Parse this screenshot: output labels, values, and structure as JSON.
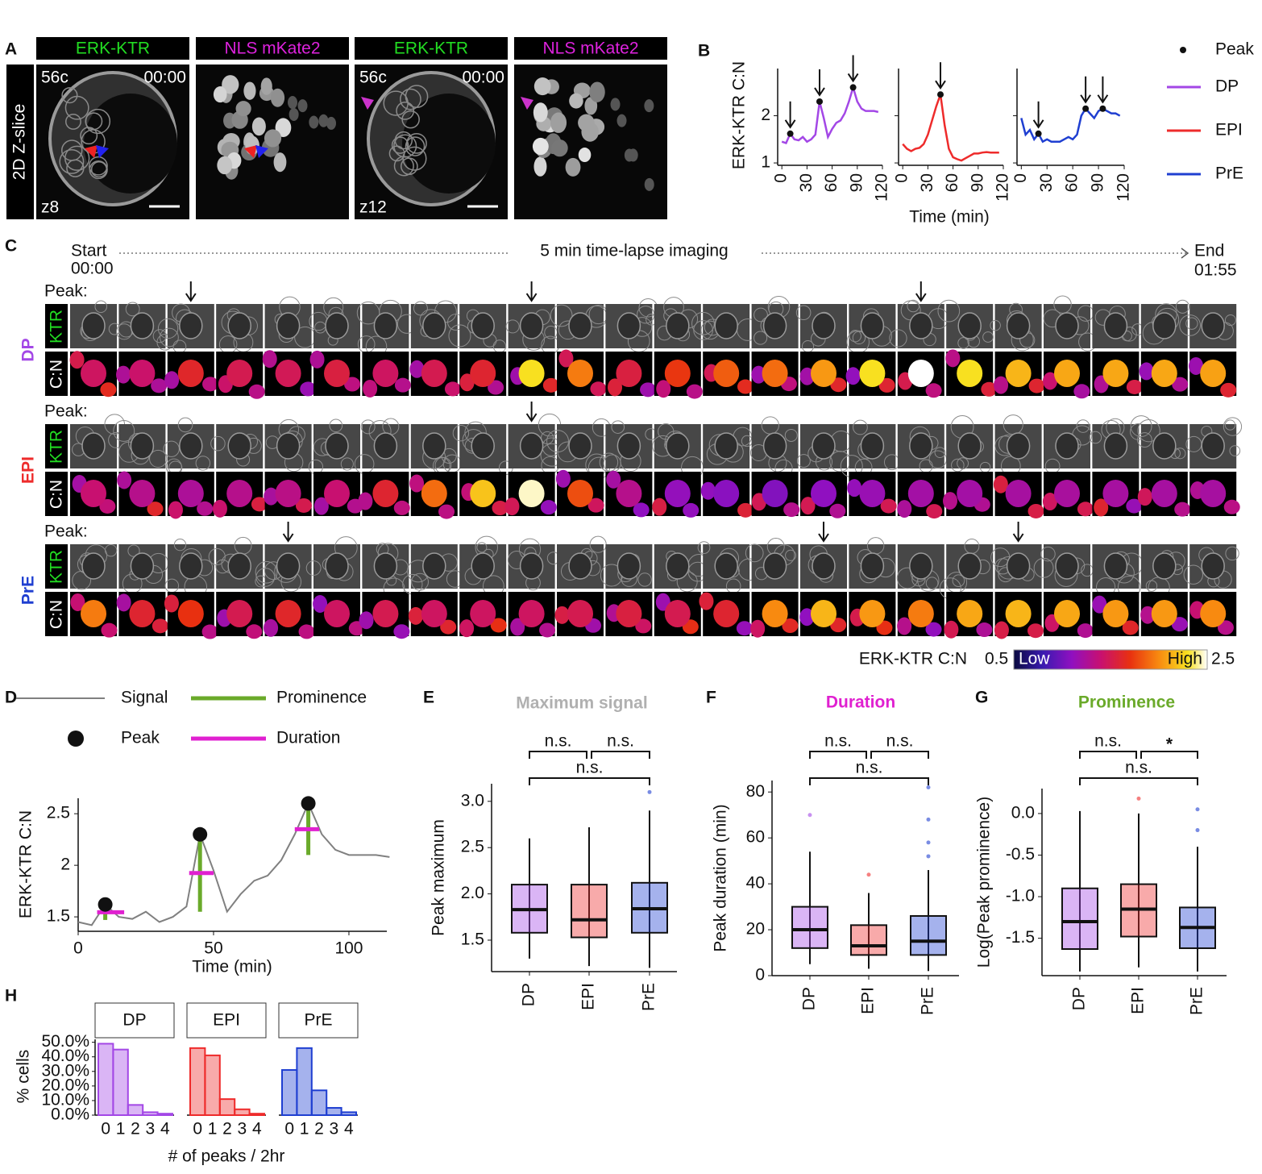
{
  "panel_labels": [
    "A",
    "B",
    "C",
    "D",
    "E",
    "F",
    "G",
    "H"
  ],
  "panel_a": {
    "channels": [
      "ERK-KTR",
      "NLS mKate2",
      "ERK-KTR",
      "NLS mKate2"
    ],
    "side_label": "2D Z-slice",
    "stage": "56c",
    "time": "00:00",
    "z": [
      "z8",
      "z12"
    ]
  },
  "panel_c": {
    "start": "Start",
    "start_time": "00:00",
    "caption": "5 min time-lapse imaging",
    "end": "End",
    "end_time": "01:55",
    "peak_label": "Peak:",
    "channel_labels": [
      "KTR",
      "C:N"
    ],
    "colorbar": {
      "label": "ERK-KTR C:N",
      "min": 0.5,
      "min_label": "Low",
      "max_label": "High",
      "max": 2.5
    }
  },
  "chart_data": [
    {
      "type": "line",
      "y_label": "ERK-KTR C:N",
      "x_label": "Time (min)",
      "peak_label": "Peak",
      "x": [
        0,
        5,
        10,
        15,
        20,
        25,
        30,
        35,
        40,
        45,
        50,
        55,
        60,
        65,
        70,
        75,
        80,
        85,
        90,
        95,
        100,
        105,
        110,
        115
      ],
      "xlim": [
        -5,
        120
      ],
      "xticks": [
        0,
        30,
        60,
        90,
        120
      ],
      "ylim": [
        0.95,
        3.0
      ],
      "yticks": [
        1,
        2
      ],
      "series": [
        {
          "name": "DP",
          "color": "#a347e6",
          "values": [
            1.45,
            1.42,
            1.62,
            1.5,
            1.48,
            1.55,
            1.45,
            1.5,
            1.6,
            2.3,
            1.95,
            1.55,
            1.72,
            1.85,
            1.9,
            2.05,
            2.3,
            2.6,
            2.3,
            2.15,
            2.1,
            2.1,
            2.1,
            2.08
          ],
          "peaks": [
            2,
            9,
            17
          ]
        },
        {
          "name": "EPI",
          "color": "#ee2b2b",
          "values": [
            1.4,
            1.3,
            1.25,
            1.3,
            1.32,
            1.4,
            1.6,
            1.9,
            2.2,
            2.45,
            1.8,
            1.3,
            1.12,
            1.08,
            1.05,
            1.1,
            1.15,
            1.2,
            1.2,
            1.22,
            1.23,
            1.22,
            1.22,
            1.22
          ],
          "peaks": [
            9
          ]
        },
        {
          "name": "PrE",
          "color": "#1f3fd1",
          "values": [
            1.95,
            1.6,
            1.7,
            1.5,
            1.62,
            1.45,
            1.5,
            1.45,
            1.45,
            1.45,
            1.5,
            1.55,
            1.5,
            1.6,
            2.0,
            2.15,
            2.05,
            1.95,
            2.1,
            2.15,
            2.1,
            2.05,
            2.05,
            2.0
          ],
          "peaks": [
            4,
            15,
            19
          ]
        }
      ]
    },
    {
      "type": "line",
      "y_label": "ERK-KTR C:N",
      "x_label": "Time (min)",
      "x": [
        0,
        5,
        10,
        15,
        20,
        25,
        30,
        35,
        40,
        45,
        50,
        55,
        60,
        65,
        70,
        75,
        80,
        85,
        90,
        95,
        100,
        105,
        110,
        115
      ],
      "xlim": [
        0,
        114
      ],
      "xticks": [
        0,
        50,
        100
      ],
      "ylim": [
        1.36,
        2.65
      ],
      "yticks": [
        1.5,
        2,
        2.5
      ],
      "series": [
        {
          "name": "Signal",
          "color": "#808080",
          "values": [
            1.45,
            1.42,
            1.62,
            1.5,
            1.48,
            1.55,
            1.45,
            1.5,
            1.6,
            2.3,
            1.95,
            1.55,
            1.72,
            1.85,
            1.9,
            2.05,
            2.3,
            2.6,
            2.3,
            2.15,
            2.1,
            2.1,
            2.1,
            2.08
          ]
        }
      ],
      "peaks": {
        "name": "Peak",
        "indices": [
          2,
          9,
          17
        ]
      },
      "prominence": {
        "name": "Prominence",
        "color": "#6aaa2a",
        "values": [
          0.15,
          0.75,
          0.5
        ]
      },
      "duration": {
        "name": "Duration",
        "color": "#e020d0",
        "start": [
          7,
          41,
          80
        ],
        "end": [
          17,
          50,
          89
        ]
      }
    },
    {
      "type": "box",
      "title": "Maximum signal",
      "title_color": "#b0b0b0",
      "y_label": "Peak maximum",
      "categories": [
        "DP",
        "EPI",
        "PrE"
      ],
      "colors": [
        "#a347e6",
        "#ee2b2b",
        "#1f3fd1"
      ],
      "ylim": [
        1.16,
        3.19
      ],
      "yticks": [
        1.5,
        {
          "value": 2.0,
          "label": "2.0"
        },
        2.5,
        {
          "value": 3.0,
          "label": "3.0"
        }
      ],
      "boxes": [
        {
          "low": 1.3,
          "q1": 1.58,
          "median": 1.83,
          "q3": 2.1,
          "high": 2.6,
          "outliers": []
        },
        {
          "low": 1.22,
          "q1": 1.53,
          "median": 1.72,
          "q3": 2.1,
          "high": 2.72,
          "outliers": []
        },
        {
          "low": 1.2,
          "q1": 1.58,
          "median": 1.84,
          "q3": 2.12,
          "high": 2.9,
          "outliers": [
            3.1
          ]
        }
      ],
      "comparisons": [
        {
          "pair": [
            0,
            1
          ],
          "label": "n.s."
        },
        {
          "pair": [
            1,
            2
          ],
          "label": "n.s."
        },
        {
          "pair": [
            0,
            2
          ],
          "label": "n.s."
        }
      ]
    },
    {
      "type": "box",
      "title": "Duration",
      "title_color": "#e020d0",
      "y_label": "Peak duration (min)",
      "categories": [
        "DP",
        "EPI",
        "PrE"
      ],
      "colors": [
        "#a347e6",
        "#ee2b2b",
        "#1f3fd1"
      ],
      "ylim": [
        0,
        85
      ],
      "yticks": [
        0,
        20,
        40,
        60,
        80
      ],
      "boxes": [
        {
          "low": 5,
          "q1": 12,
          "median": 20,
          "q3": 30,
          "high": 54,
          "outliers": [
            70
          ]
        },
        {
          "low": 3,
          "q1": 9,
          "median": 13,
          "q3": 22,
          "high": 36,
          "outliers": [
            44
          ]
        },
        {
          "low": 2,
          "q1": 9,
          "median": 15,
          "q3": 26,
          "high": 46,
          "outliers": [
            52,
            58,
            68,
            82
          ]
        }
      ],
      "comparisons": [
        {
          "pair": [
            0,
            1
          ],
          "label": "n.s."
        },
        {
          "pair": [
            1,
            2
          ],
          "label": "n.s."
        },
        {
          "pair": [
            0,
            2
          ],
          "label": "n.s."
        }
      ]
    },
    {
      "type": "box",
      "title": "Prominence",
      "title_color": "#6aaa2a",
      "y_label": "Log(Peak prominence)",
      "categories": [
        "DP",
        "EPI",
        "PrE"
      ],
      "colors": [
        "#a347e6",
        "#ee2b2b",
        "#1f3fd1"
      ],
      "ylim": [
        -1.95,
        0.3
      ],
      "yticks": [
        {
          "value": 0,
          "label": "0.0"
        },
        -0.5,
        {
          "value": -1,
          "label": "-1.0"
        },
        -1.5
      ],
      "boxes": [
        {
          "low": -1.9,
          "q1": -1.63,
          "median": -1.3,
          "q3": -0.9,
          "high": 0.03,
          "outliers": []
        },
        {
          "low": -1.85,
          "q1": -1.48,
          "median": -1.15,
          "q3": -0.85,
          "high": 0.0,
          "outliers": [
            0.18
          ]
        },
        {
          "low": -1.9,
          "q1": -1.62,
          "median": -1.37,
          "q3": -1.13,
          "high": -0.4,
          "outliers": [
            -0.2,
            0.05
          ]
        }
      ],
      "comparisons": [
        {
          "pair": [
            0,
            1
          ],
          "label": "n.s."
        },
        {
          "pair": [
            1,
            2
          ],
          "label": "*"
        },
        {
          "pair": [
            0,
            2
          ],
          "label": "n.s."
        }
      ]
    },
    {
      "type": "bar",
      "y_label": "% cells",
      "x_label": "# of peaks / 2hr",
      "categories": [
        "0",
        "1",
        "2",
        "3",
        "4"
      ],
      "ylim": [
        0,
        52
      ],
      "yticks": [
        {
          "value": 0,
          "label": "0.0%"
        },
        {
          "value": 10,
          "label": "10.0%"
        },
        {
          "value": 20,
          "label": "20.0%"
        },
        {
          "value": 30,
          "label": "30.0%"
        },
        {
          "value": 40,
          "label": "40.0%"
        },
        {
          "value": 50,
          "label": "50.0%"
        }
      ],
      "series": [
        {
          "name": "DP",
          "color": "#a347e6",
          "values": [
            49,
            45,
            7,
            2,
            1
          ]
        },
        {
          "name": "EPI",
          "color": "#ee2b2b",
          "values": [
            46,
            41,
            11,
            4,
            1
          ]
        },
        {
          "name": "PrE",
          "color": "#1f3fd1",
          "values": [
            31,
            46,
            17,
            5,
            2
          ]
        }
      ]
    }
  ]
}
